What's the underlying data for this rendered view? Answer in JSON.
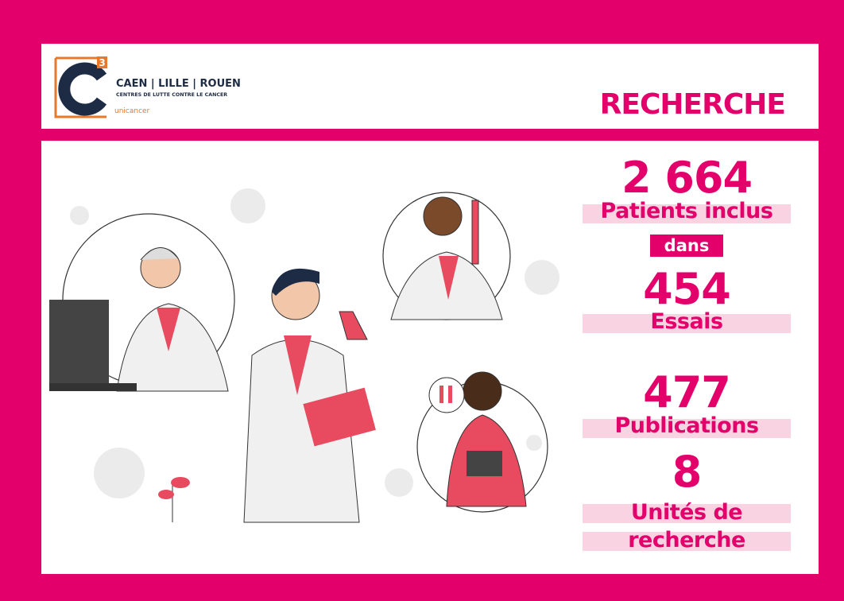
{
  "header": {
    "logo": {
      "superscript": "3",
      "cities": "CAEN | LILLE | ROUEN",
      "subtitle": "CENTRES DE LUTTE CONTRE LE CANCER",
      "network": "unicancer"
    },
    "title": "RECHERCHE"
  },
  "stats": [
    {
      "value": "2 664",
      "label": "Patients inclus"
    },
    {
      "connector": "dans"
    },
    {
      "value": "454",
      "label": "Essais"
    },
    {
      "value": "477",
      "label": "Publications"
    },
    {
      "value": "8",
      "label": [
        "Unités de",
        "recherche"
      ]
    }
  ]
}
